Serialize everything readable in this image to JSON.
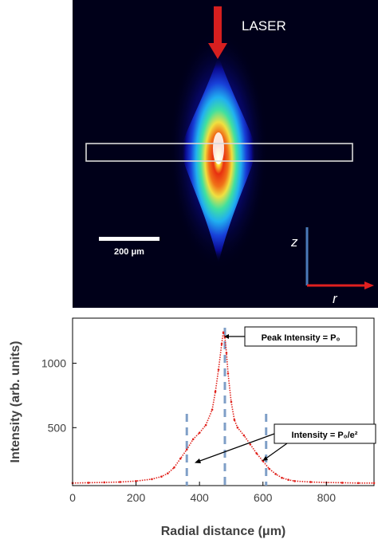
{
  "image_panel": {
    "laser_label": "LASER",
    "scale_bar_label": "200 μm",
    "axis_z_label": "z",
    "axis_r_label": "r"
  },
  "chart_data": {
    "type": "scatter",
    "title": "",
    "xlabel": "Radial distance (μm)",
    "ylabel": "Intensity (arb. units)",
    "xlim": [
      0,
      950
    ],
    "ylim": [
      50,
      1350
    ],
    "xticks": [
      0,
      200,
      400,
      600,
      800
    ],
    "yticks": [
      500,
      1000
    ],
    "grid": false,
    "series": [
      {
        "color": "#e0201a",
        "x": [
          0,
          50,
          100,
          150,
          200,
          250,
          280,
          300,
          320,
          340,
          360,
          380,
          400,
          420,
          440,
          450,
          460,
          470,
          475,
          480,
          485,
          490,
          500,
          510,
          520,
          540,
          560,
          580,
          600,
          620,
          640,
          660,
          680,
          700,
          750,
          800,
          850,
          900,
          950
        ],
        "y": [
          70,
          72,
          75,
          78,
          85,
          100,
          120,
          145,
          190,
          260,
          330,
          410,
          460,
          520,
          640,
          780,
          950,
          1150,
          1240,
          1200,
          1080,
          920,
          700,
          560,
          500,
          440,
          370,
          300,
          240,
          180,
          140,
          110,
          95,
          85,
          78,
          74,
          72,
          70,
          70
        ]
      }
    ],
    "vlines": [
      360,
      480,
      610
    ],
    "annotations": [
      {
        "text": "Peak Intensity = P₀",
        "x": 480,
        "y": 1260
      },
      {
        "text": "Intensity = P₀/e²",
        "x": [
          360,
          610
        ],
        "y": [
          270,
          270
        ]
      }
    ]
  },
  "colors": {
    "curve": "#e0201a",
    "vline": "#7f9fc7",
    "laser_arrow": "#d61f1f",
    "z_axis": "#4a7ab8",
    "r_axis": "#e02020",
    "roi_box": "#d9d9d9"
  }
}
